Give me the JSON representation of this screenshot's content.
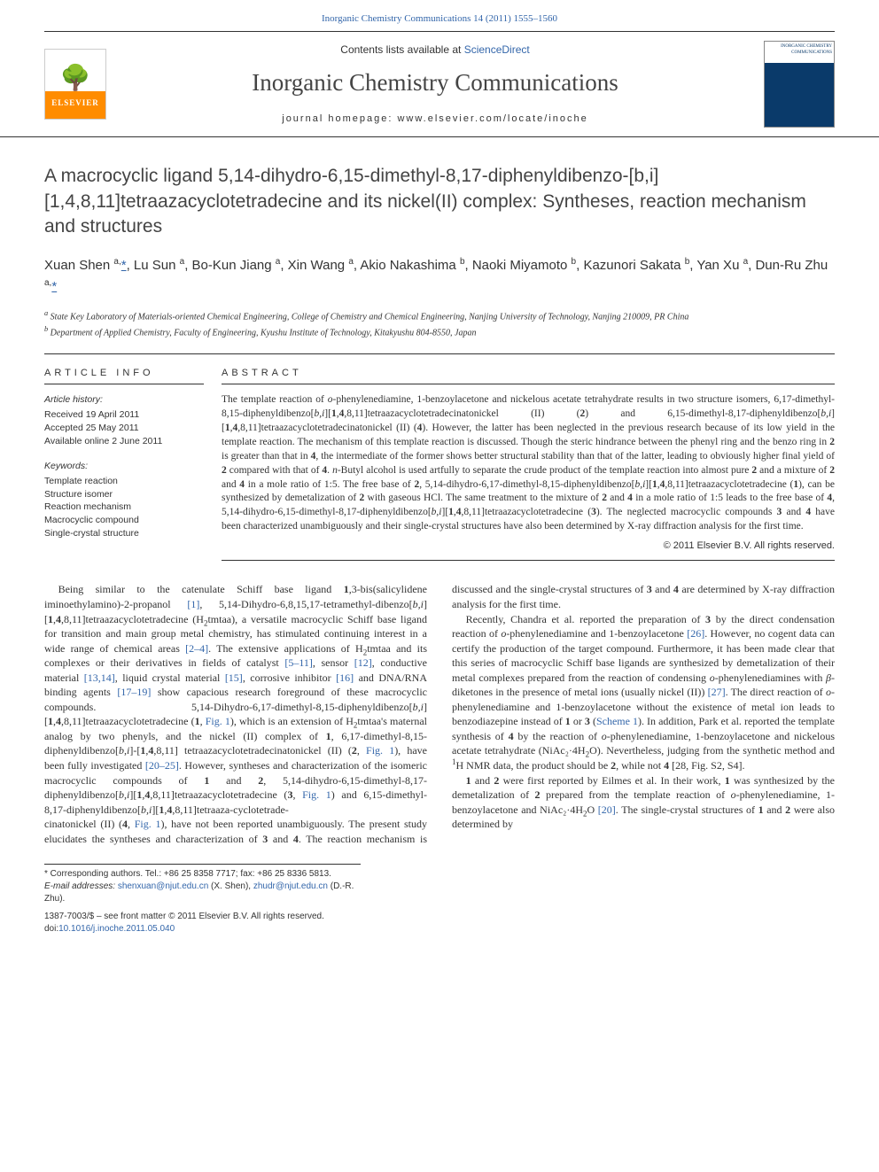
{
  "citation_link_text": "Inorganic Chemistry Communications 14 (2011) 1555–1560",
  "masthead": {
    "contents_prefix": "Contents lists available at ",
    "contents_link": "ScienceDirect",
    "journal_name": "Inorganic Chemistry Communications",
    "homepage_label": "journal homepage: ",
    "homepage_url": "www.elsevier.com/locate/inoche",
    "publisher": "ELSEVIER",
    "cover_journal": "INORGANIC CHEMISTRY COMMUNICATIONS"
  },
  "title": "A macrocyclic ligand 5,14-dihydro-6,15-dimethyl-8,17-diphenyldibenzo-[b,i][1,4,8,11]tetraazacyclotetradecine and its nickel(II) complex: Syntheses, reaction mechanism and structures",
  "authors_html": "Xuan Shen <sup>a,</sup><a class='corr' href='#'>*</a>, Lu Sun <sup>a</sup>, Bo-Kun Jiang <sup>a</sup>, Xin Wang <sup>a</sup>, Akio Nakashima <sup>b</sup>, Naoki Miyamoto <sup>b</sup>, Kazunori Sakata <sup>b</sup>, Yan Xu <sup>a</sup>, Dun-Ru Zhu <sup>a,</sup><a class='corr' href='#'>*</a>",
  "affiliations": {
    "a": "State Key Laboratory of Materials-oriented Chemical Engineering, College of Chemistry and Chemical Engineering, Nanjing University of Technology, Nanjing 210009, PR China",
    "b": "Department of Applied Chemistry, Faculty of Engineering, Kyushu Institute of Technology, Kitakyushu 804-8550, Japan"
  },
  "info": {
    "heading": "ARTICLE INFO",
    "history_label": "Article history:",
    "received": "Received 19 April 2011",
    "accepted": "Accepted 25 May 2011",
    "online": "Available online 2 June 2011",
    "keywords_label": "Keywords:",
    "keywords": [
      "Template reaction",
      "Structure isomer",
      "Reaction mechanism",
      "Macrocyclic compound",
      "Single-crystal structure"
    ]
  },
  "abstract": {
    "heading": "ABSTRACT",
    "body": "The template reaction of o-phenylenediamine, 1-benzoylacetone and nickelous acetate tetrahydrate results in two structure isomers, 6,17-dimethyl-8,15-diphenyldibenzo[b,i][1,4,8,11]tetraazacyclotetradecinatonickel (II) (2) and 6,15-dimethyl-8,17-diphenyldibenzo[b,i][1,4,8,11]tetraazacyclotetradecinatonickel (II) (4). However, the latter has been neglected in the previous research because of its low yield in the template reaction. The mechanism of this template reaction is discussed. Though the steric hindrance between the phenyl ring and the benzo ring in 2 is greater than that in 4, the intermediate of the former shows better structural stability than that of the latter, leading to obviously higher final yield of 2 compared with that of 4. n-Butyl alcohol is used artfully to separate the crude product of the template reaction into almost pure 2 and a mixture of 2 and 4 in a mole ratio of 1:5. The free base of 2, 5,14-dihydro-6,17-dimethyl-8,15-diphenyldibenzo[b,i][1,4,8,11]tetraazacyclotetradecine (1), can be synthesized by demetalization of 2 with gaseous HCl. The same treatment to the mixture of 2 and 4 in a mole ratio of 1:5 leads to the free base of 4, 5,14-dihydro-6,15-dimethyl-8,17-diphenyldibenzo[b,i][1,4,8,11]tetraazacyclotetradecine (3). The neglected macrocyclic compounds 3 and 4 have been characterized unambiguously and their single-crystal structures have also been determined by X-ray diffraction analysis for the first time.",
    "copyright": "© 2011 Elsevier B.V. All rights reserved."
  },
  "body": {
    "p1": "Being similar to the catenulate Schiff base ligand 1,3-bis(salicylidene iminoethylamino)-2-propanol [1], 5,14-Dihydro-6,8,15,17-tetramethyl-dibenzo[b,i][1,4,8,11]tetraazacyclotetradecine (H₂tmtaa), a versatile macrocyclic Schiff base ligand for transition and main group metal chemistry, has stimulated continuing interest in a wide range of chemical areas [2–4]. The extensive applications of H₂tmtaa and its complexes or their derivatives in fields of catalyst [5–11], sensor [12], conductive material [13,14], liquid crystal material [15], corrosive inhibitor [16] and DNA/RNA binding agents [17–19] show capacious research foreground of these macrocyclic compounds. 5,14-Dihydro-6,17-dimethyl-8,15-diphenyldibenzo[b,i][1,4,8,11]tetraazacyclotetradecine (1, Fig. 1), which is an extension of H₂tmtaa's maternal analog by two phenyls, and the nickel (II) complex of 1, 6,17-dimethyl-8,15-diphenyldibenzo[b,i]-[1,4,8,11] tetraazacyclotetradecinatonickel (II) (2, Fig. 1), have been fully investigated [20–25]. However, syntheses and characterization of the isomeric macrocyclic compounds of 1 and 2, 5,14-dihydro-6,15-dimethyl-8,17-diphenyldibenzo[b,i][1,4,8,11]tetraazacyclotetradecine (3, Fig. 1) and 6,15-dimethyl-8,17-diphenyldibenzo[b,i][1,4,8,11]tetraaza-cyclotetrade-",
    "p2": "cinatonickel (II) (4, Fig. 1), have not been reported unambiguously. The present study elucidates the syntheses and characterization of 3 and 4. The reaction mechanism is discussed and the single-crystal structures of 3 and 4 are determined by X-ray diffraction analysis for the first time.",
    "p3": "Recently, Chandra et al. reported the preparation of 3 by the direct condensation reaction of o-phenylenediamine and 1-benzoylacetone [26]. However, no cogent data can certify the production of the target compound. Furthermore, it has been made clear that this series of macrocyclic Schiff base ligands are synthesized by demetalization of their metal complexes prepared from the reaction of condensing o-phenylenediamines with β-diketones in the presence of metal ions (usually nickel (II)) [27]. The direct reaction of o-phenylenediamine and 1-benzoylacetone without the existence of metal ion leads to benzodiazepine instead of 1 or 3 (Scheme 1). In addition, Park et al. reported the template synthesis of 4 by the reaction of o-phenylenediamine, 1-benzoylacetone and nickelous acetate tetrahydrate (NiAc₂·4H₂O). Nevertheless, judging from the synthetic method and ¹H NMR data, the product should be 2, while not 4 [28, Fig. S2, S4].",
    "p4": "1 and 2 were first reported by Eilmes et al. In their work, 1 was synthesized by the demetalization of 2 prepared from the template reaction of o-phenylenediamine, 1-benzoylacetone and NiAc₂·4H₂O [20]. The single-crystal structures of 1 and 2 were also determined by"
  },
  "footnotes": {
    "corr": "* Corresponding authors. Tel.: +86 25 8358 7717; fax: +86 25 8336 5813.",
    "emails_label": "E-mail addresses:",
    "email1": "shenxuan@njut.edu.cn",
    "email1_who": "(X. Shen),",
    "email2": "zhudr@njut.edu.cn",
    "email2_who": "(D.-R. Zhu)."
  },
  "bottom": {
    "issn": "1387-7003/$ – see front matter © 2011 Elsevier B.V. All rights reserved.",
    "doi_label": "doi:",
    "doi": "10.1016/j.inoche.2011.05.040"
  },
  "refs": {
    "r1": "[1]",
    "r2_4": "[2–4]",
    "r5_11": "[5–11]",
    "r12": "[12]",
    "r13_14": "[13,14]",
    "r15": "[15]",
    "r16": "[16]",
    "r17_19": "[17–19]",
    "r20_25": "[20–25]",
    "r26": "[26]",
    "r27": "[27]",
    "r28": "[28",
    "r20": "[20]",
    "fig1": "Fig. 1",
    "scheme1": "Scheme 1",
    "figS": ", Fig. S2, S4]"
  }
}
